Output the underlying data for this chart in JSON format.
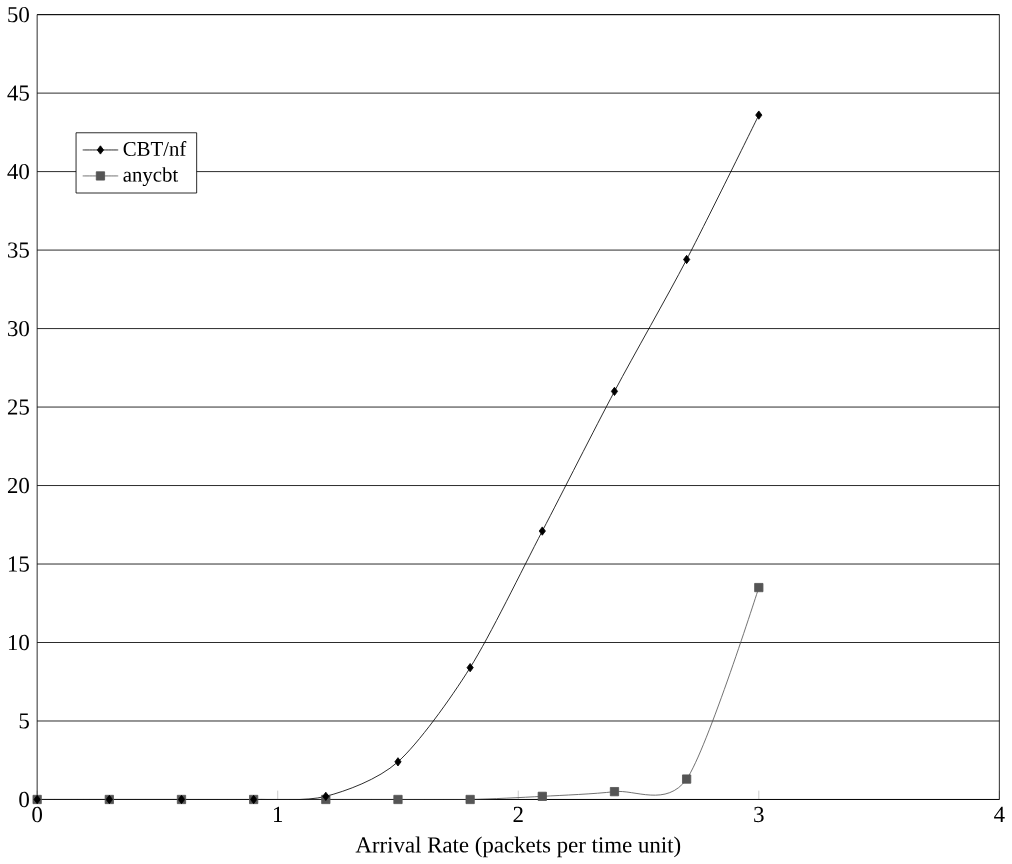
{
  "chart_data": {
    "type": "line",
    "xlabel": "Arrival Rate (packets per time unit)",
    "x": [
      0,
      0.3,
      0.6,
      0.9,
      1.2,
      1.5,
      1.8,
      2.1,
      2.4,
      2.7,
      3.0
    ],
    "series": [
      {
        "name": "CBT/nf",
        "color": "#000000",
        "marker": "diamond",
        "values": [
          0,
          0,
          0,
          0,
          0.2,
          2.4,
          8.4,
          17.1,
          26.0,
          34.4,
          43.6
        ]
      },
      {
        "name": "anycbt",
        "color": "#555555",
        "marker": "square",
        "values": [
          0,
          0,
          0,
          0,
          0,
          0,
          0,
          0.2,
          0.5,
          1.3,
          13.5
        ]
      }
    ],
    "xlim": [
      0,
      4
    ],
    "ylim": [
      0,
      50
    ],
    "xticks": [
      0,
      1,
      2,
      3,
      4
    ],
    "yticks": [
      0,
      5,
      10,
      15,
      20,
      25,
      30,
      35,
      40,
      45,
      50
    ],
    "grid": "y",
    "legend": "top left"
  }
}
